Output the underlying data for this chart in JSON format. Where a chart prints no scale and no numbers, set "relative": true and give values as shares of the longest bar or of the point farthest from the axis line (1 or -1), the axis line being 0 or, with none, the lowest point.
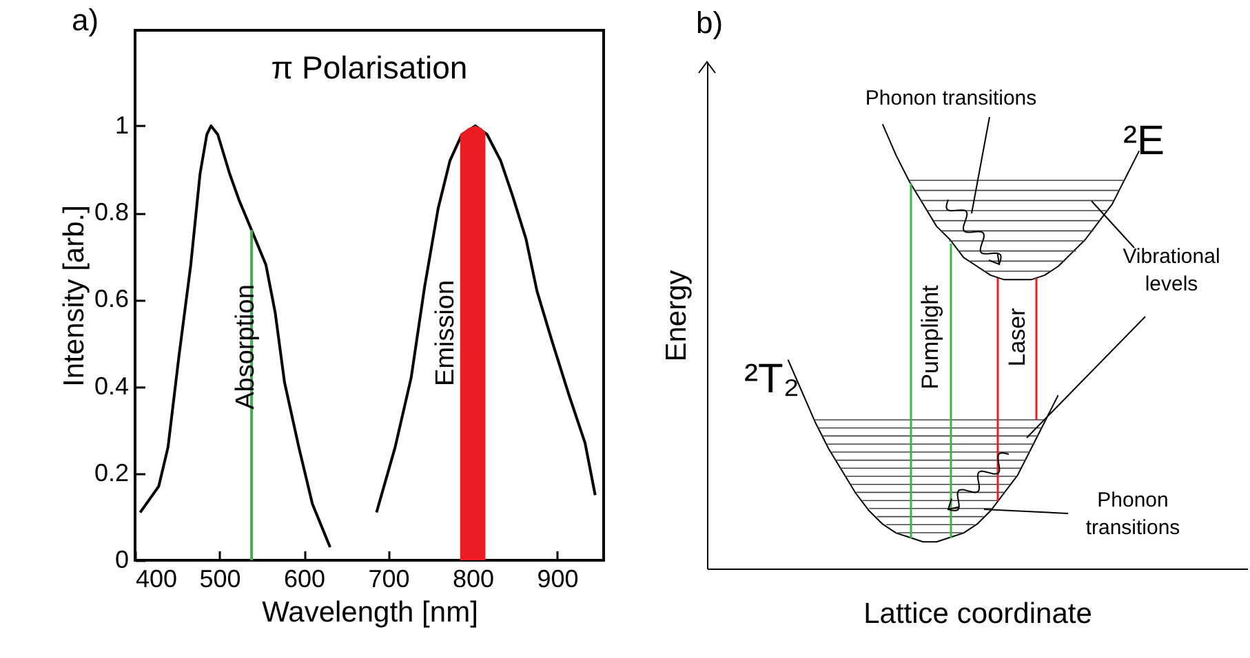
{
  "chart_data": [
    {
      "type": "line",
      "title": "π Polarisation",
      "xlabel": "Wavelength [nm]",
      "ylabel": "Intensity [arb.]",
      "xlim": [
        400,
        955
      ],
      "ylim": [
        0,
        1.22
      ],
      "xticks": [
        400,
        500,
        600,
        700,
        800,
        900
      ],
      "yticks": [
        0,
        0.2,
        0.4,
        0.6,
        0.8,
        1
      ],
      "annotations": [
        "a)",
        "Absorption",
        "Emission"
      ],
      "series": [
        {
          "type": "line",
          "color": "#000000",
          "x": [
            406,
            428,
            439,
            452,
            466,
            477,
            485,
            490,
            498,
            512,
            523,
            538,
            555,
            566,
            577,
            594,
            610,
            631
          ],
          "values": [
            0.11,
            0.17,
            0.26,
            0.47,
            0.68,
            0.89,
            0.98,
            1.0,
            0.98,
            0.89,
            0.83,
            0.76,
            0.68,
            0.57,
            0.41,
            0.26,
            0.13,
            0.03
          ]
        },
        {
          "type": "line",
          "color": "#000000",
          "x": [
            686,
            708,
            727,
            743,
            759,
            773,
            787,
            803,
            817,
            833,
            847,
            863,
            876,
            893,
            914,
            933,
            945
          ],
          "values": [
            0.11,
            0.26,
            0.42,
            0.63,
            0.81,
            0.92,
            0.98,
            1.0,
            0.98,
            0.92,
            0.84,
            0.74,
            0.62,
            0.51,
            0.38,
            0.27,
            0.15
          ]
        },
        {
          "type": "line",
          "color": "#3cb44b",
          "x": [
            538,
            538
          ],
          "values": [
            0,
            0.76
          ]
        },
        {
          "type": "area",
          "color": "#ed1c24",
          "x": [
            785,
            795,
            803,
            810,
            815
          ],
          "values": [
            0.98,
            0.995,
            1.0,
            0.995,
            0.985
          ]
        }
      ]
    },
    {
      "type": "line",
      "relative": true,
      "xlabel": "Lattice coordinate",
      "ylabel": "Energy",
      "annotations": [
        "b)",
        "Phonon transitions",
        "²E",
        "Vibrational levels",
        "²T₂",
        "Pumplight",
        "Laser",
        "Phonon transitions"
      ],
      "categories": [
        null,
        null,
        null,
        null,
        null,
        null,
        null,
        null,
        null,
        null,
        null,
        null,
        null,
        null,
        null,
        null,
        null,
        null,
        null,
        null,
        null,
        null,
        null,
        null,
        null,
        null,
        null,
        null,
        null,
        null,
        null,
        null,
        null,
        null,
        null,
        null,
        null,
        null,
        null,
        null,
        null
      ],
      "series": [
        {
          "color": "#000000",
          "values": [
            null,
            null,
            null,
            null,
            null,
            null,
            0.47,
            0.4,
            0.33,
            0.27,
            0.22,
            0.17,
            0.13,
            0.1,
            0.08,
            0.07,
            0.06,
            0.06,
            0.07,
            0.08,
            0.1,
            0.13,
            0.17,
            0.21,
            0.27,
            0.33,
            0.39,
            null,
            null,
            null,
            null,
            null,
            null,
            null,
            null,
            null,
            null,
            null,
            null,
            null,
            null
          ]
        },
        {
          "color": "#000000",
          "values": [
            null,
            null,
            null,
            null,
            null,
            null,
            null,
            null,
            null,
            null,
            null,
            null,
            null,
            1.0,
            0.93,
            0.87,
            0.82,
            0.77,
            0.74,
            0.7,
            0.68,
            0.66,
            0.65,
            0.65,
            0.65,
            0.66,
            0.68,
            0.71,
            0.74,
            0.78,
            0.82,
            0.88,
            0.94,
            null,
            null,
            null,
            null,
            null,
            null,
            null,
            null
          ]
        }
      ]
    }
  ]
}
